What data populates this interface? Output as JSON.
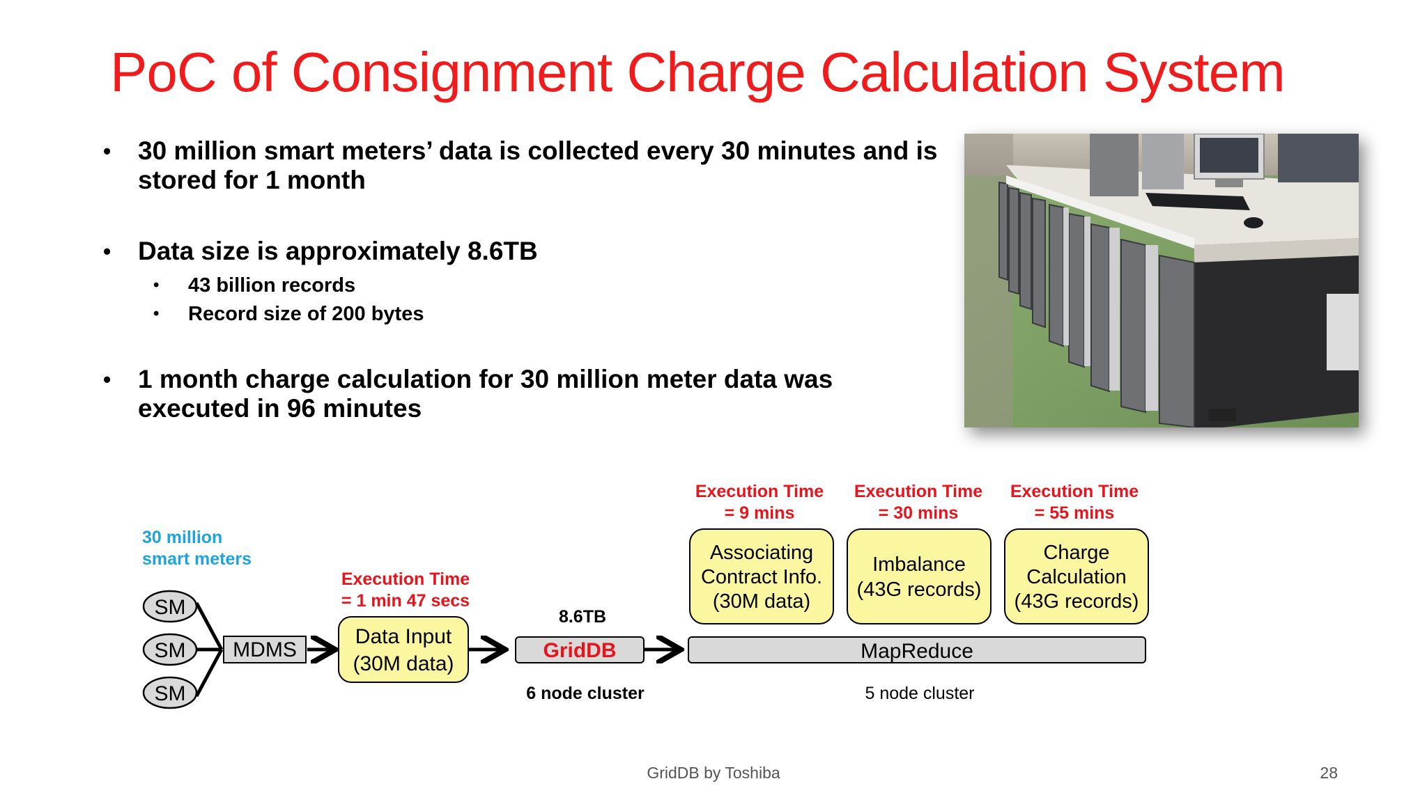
{
  "title": "PoC of Consignment Charge Calculation System",
  "bullets": [
    {
      "text": "30 million smart meters’ data is collected every 30 minutes and is stored for 1 month"
    },
    {
      "text": "Data size is approximately 8.6TB",
      "subs": [
        "43 billion records",
        "Record size of 200 bytes"
      ]
    },
    {
      "text": "1 month charge calculation for 30 million meter data was executed in 96 minutes"
    }
  ],
  "bullet_symbol": "•",
  "diagram": {
    "meters_label_1": "30 million",
    "meters_label_2": "smart meters",
    "sm": "SM",
    "mdms": "MDMS",
    "data_input_exec_1": "Execution Time",
    "data_input_exec_2": "= 1 min 47 secs",
    "data_input_1": "Data Input",
    "data_input_2": "(30M data)",
    "griddb_size": "8.6TB",
    "griddb": "GridDB",
    "griddb_cluster": "6 node cluster",
    "mapreduce": "MapReduce",
    "mapreduce_cluster": "5 node cluster",
    "tasks": [
      {
        "exec_1": "Execution Time",
        "exec_2": "= 9 mins",
        "line_1": "Associating",
        "line_2": "Contract Info.",
        "line_3": "(30M data)"
      },
      {
        "exec_1": "Execution Time",
        "exec_2": "= 30 mins",
        "line_1": "Imbalance",
        "line_2": "(43G records)"
      },
      {
        "exec_1": "Execution Time",
        "exec_2": "= 55 mins",
        "line_1": "Charge",
        "line_2": "Calculation",
        "line_3": "(43G records)"
      }
    ]
  },
  "footer": "GridDB by Toshiba",
  "page_number": "28",
  "colors": {
    "title": "#ee1c1c",
    "exec_time": "#e8141b",
    "meters_label": "#1ea3df",
    "task_box": "#fbf7a0",
    "bar": "#d9d9d9"
  }
}
